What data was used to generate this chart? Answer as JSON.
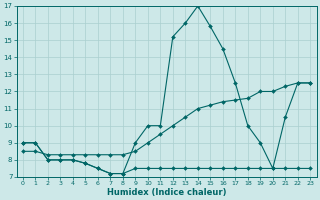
{
  "xlabel": "Humidex (Indice chaleur)",
  "xlim": [
    -0.5,
    23.5
  ],
  "ylim": [
    7,
    17
  ],
  "yticks": [
    7,
    8,
    9,
    10,
    11,
    12,
    13,
    14,
    15,
    16,
    17
  ],
  "xticks": [
    0,
    1,
    2,
    3,
    4,
    5,
    6,
    7,
    8,
    9,
    10,
    11,
    12,
    13,
    14,
    15,
    16,
    17,
    18,
    19,
    20,
    21,
    22,
    23
  ],
  "bg_color": "#cde8e8",
  "grid_color": "#aacfcf",
  "line_color": "#006666",
  "line1_x": [
    0,
    1,
    2,
    3,
    4,
    5,
    6,
    7,
    8,
    9,
    10,
    11,
    12,
    13,
    14,
    15,
    16,
    17,
    18,
    19,
    20,
    21,
    22,
    23
  ],
  "line1_y": [
    9.0,
    9.0,
    8.0,
    8.0,
    8.0,
    7.8,
    7.5,
    7.2,
    7.2,
    9.0,
    10.0,
    10.0,
    15.2,
    16.0,
    17.0,
    15.8,
    14.5,
    12.5,
    10.0,
    9.0,
    7.5,
    10.5,
    12.5,
    12.5
  ],
  "line2_x": [
    0,
    1,
    2,
    3,
    4,
    5,
    6,
    7,
    8,
    9,
    10,
    11,
    12,
    13,
    14,
    15,
    16,
    17,
    18,
    19,
    20,
    21,
    22,
    23
  ],
  "line2_y": [
    9.0,
    9.0,
    8.0,
    8.0,
    8.0,
    7.8,
    7.5,
    7.2,
    7.2,
    7.5,
    7.5,
    7.5,
    7.5,
    7.5,
    7.5,
    7.5,
    7.5,
    7.5,
    7.5,
    7.5,
    7.5,
    7.5,
    7.5,
    7.5
  ],
  "line3_x": [
    0,
    1,
    2,
    3,
    4,
    5,
    6,
    7,
    8,
    9,
    10,
    11,
    12,
    13,
    14,
    15,
    16,
    17,
    18,
    19,
    20,
    21,
    22,
    23
  ],
  "line3_y": [
    8.5,
    8.5,
    8.3,
    8.3,
    8.3,
    8.3,
    8.3,
    8.3,
    8.3,
    8.5,
    9.0,
    9.5,
    10.0,
    10.5,
    11.0,
    11.2,
    11.4,
    11.5,
    11.6,
    12.0,
    12.0,
    12.3,
    12.5,
    12.5
  ]
}
